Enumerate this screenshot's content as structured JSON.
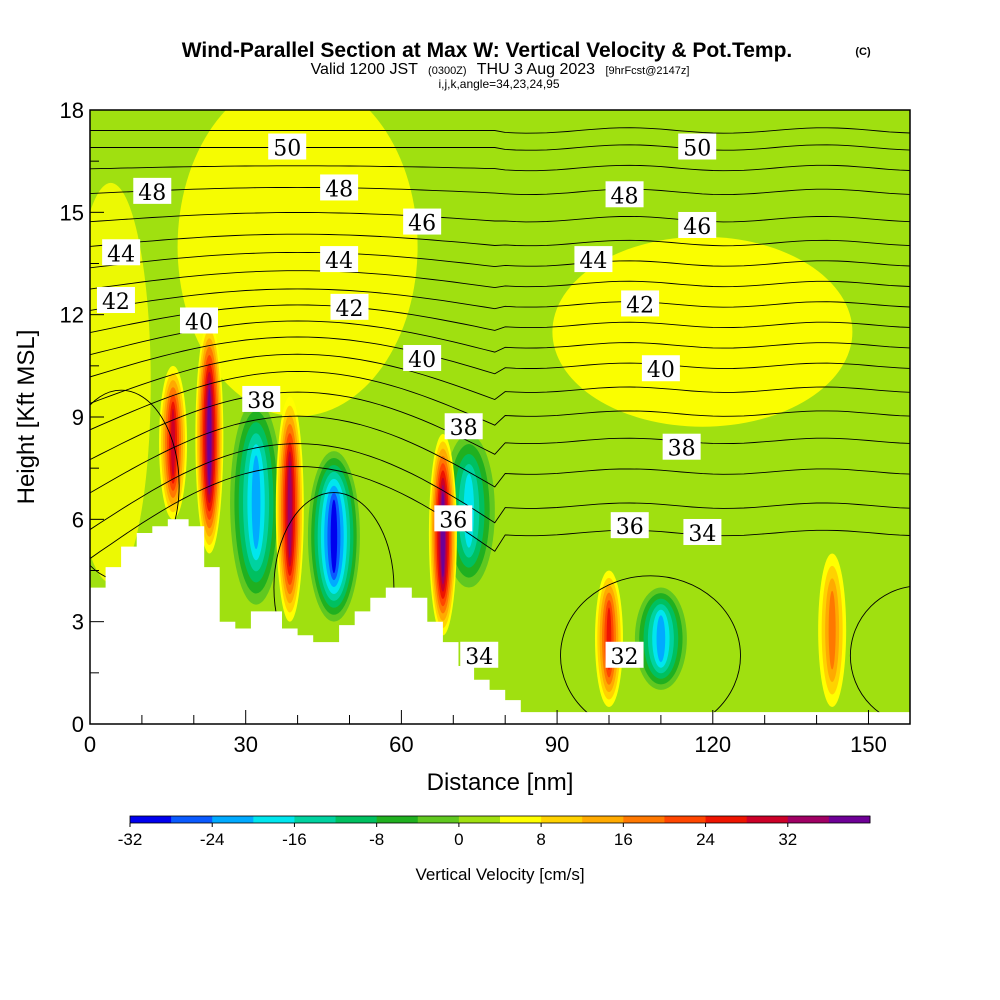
{
  "chart_data": {
    "type": "heatmap",
    "title": "Wind-Parallel Section at Max W: Vertical Velocity & Pot.Temp.",
    "title_mark": "(C)",
    "subtitle": {
      "valid": "Valid 1200 JST",
      "zulu": "(0300Z)",
      "date": "THU 3 Aug 2023",
      "forecast": "[9hrFcst@2147z]"
    },
    "indices": "i,j,k,angle=34,23,24,95",
    "xlabel": "Distance [nm]",
    "ylabel": "Height [Kft MSL]",
    "xlim": [
      0,
      158
    ],
    "ylim": [
      0,
      18
    ],
    "x_ticks": [
      "0",
      "30",
      "60",
      "90",
      "120",
      "150"
    ],
    "y_ticks": [
      "0",
      "3",
      "6",
      "9",
      "12",
      "15",
      "18"
    ],
    "colorbar": {
      "label": "Vertical Velocity [cm/s]",
      "levels": [
        -32,
        -28,
        -24,
        -20,
        -16,
        -12,
        -8,
        -4,
        0,
        4,
        8,
        12,
        16,
        20,
        24,
        28,
        32,
        36
      ],
      "tick_labels": [
        "-32",
        "-24",
        "-16",
        "-8",
        "0",
        "8",
        "16",
        "24",
        "32"
      ],
      "colors": [
        "#0000ee",
        "#0a5aff",
        "#00aaff",
        "#00e6ee",
        "#00d2a0",
        "#00c060",
        "#20b020",
        "#60c820",
        "#a0e010",
        "#ffff00",
        "#ffd200",
        "#ffaa00",
        "#ff7800",
        "#ff4600",
        "#ee1400",
        "#cc0028",
        "#a00064",
        "#6e0096"
      ]
    },
    "terrain_kft": [
      [
        0,
        4.0
      ],
      [
        3,
        4.0
      ],
      [
        3,
        4.6
      ],
      [
        6,
        4.6
      ],
      [
        6,
        5.2
      ],
      [
        9,
        5.2
      ],
      [
        9,
        5.6
      ],
      [
        12,
        5.6
      ],
      [
        12,
        5.8
      ],
      [
        15,
        5.8
      ],
      [
        15,
        6.0
      ],
      [
        19,
        6.0
      ],
      [
        19,
        5.8
      ],
      [
        22,
        5.8
      ],
      [
        22,
        4.6
      ],
      [
        25,
        4.6
      ],
      [
        25,
        3.0
      ],
      [
        28,
        3.0
      ],
      [
        28,
        2.8
      ],
      [
        31,
        2.8
      ],
      [
        31,
        3.3
      ],
      [
        37,
        3.3
      ],
      [
        37,
        2.8
      ],
      [
        40,
        2.8
      ],
      [
        40,
        2.6
      ],
      [
        43,
        2.6
      ],
      [
        43,
        2.4
      ],
      [
        48,
        2.4
      ],
      [
        48,
        2.9
      ],
      [
        51,
        2.9
      ],
      [
        51,
        3.3
      ],
      [
        54,
        3.3
      ],
      [
        54,
        3.7
      ],
      [
        57,
        3.7
      ],
      [
        57,
        4.0
      ],
      [
        62,
        4.0
      ],
      [
        62,
        3.7
      ],
      [
        65,
        3.7
      ],
      [
        65,
        3.0
      ],
      [
        68,
        3.0
      ],
      [
        68,
        2.4
      ],
      [
        71,
        2.4
      ],
      [
        71,
        1.7
      ],
      [
        74,
        1.7
      ],
      [
        74,
        1.3
      ],
      [
        77,
        1.3
      ],
      [
        77,
        1.0
      ],
      [
        80,
        1.0
      ],
      [
        80,
        0.7
      ],
      [
        83,
        0.7
      ],
      [
        83,
        0.35
      ],
      [
        158,
        0.35
      ]
    ],
    "updraft_cores": [
      {
        "x": 16,
        "z_bottom": 6.0,
        "z_top": 10.5,
        "w": 28
      },
      {
        "x": 23,
        "z_bottom": 5.0,
        "z_top": 11.8,
        "w": 36
      },
      {
        "x": 38.5,
        "z_bottom": 3.0,
        "z_top": 9.6,
        "w": 30
      },
      {
        "x": 68,
        "z_bottom": 2.6,
        "z_top": 8.5,
        "w": 36
      },
      {
        "x": 100,
        "z_bottom": 0.5,
        "z_top": 4.5,
        "w": 24
      },
      {
        "x": 143,
        "z_bottom": 0.5,
        "z_top": 5.0,
        "w": 14
      }
    ],
    "downdraft_cores": [
      {
        "x": 32,
        "z_bottom": 3.5,
        "z_top": 9.5,
        "w": -24
      },
      {
        "x": 47,
        "z_bottom": 3.0,
        "z_top": 8.0,
        "w": -32
      },
      {
        "x": 73,
        "z_bottom": 4.0,
        "z_top": 8.5,
        "w": -20
      },
      {
        "x": 110,
        "z_bottom": 1.0,
        "z_top": 4.0,
        "w": -22
      }
    ],
    "theta_contours": [
      {
        "label": "32",
        "at": [
          103,
          2.0
        ]
      },
      {
        "label": "34",
        "at": [
          75,
          2.0
        ]
      },
      {
        "label": "34",
        "at": [
          118,
          5.6
        ]
      },
      {
        "label": "36",
        "at": [
          70,
          6.0
        ]
      },
      {
        "label": "36",
        "at": [
          104,
          5.8
        ]
      },
      {
        "label": "38",
        "at": [
          33,
          9.5
        ]
      },
      {
        "label": "38",
        "at": [
          72,
          8.7
        ]
      },
      {
        "label": "38",
        "at": [
          114,
          8.1
        ]
      },
      {
        "label": "40",
        "at": [
          21,
          11.8
        ]
      },
      {
        "label": "40",
        "at": [
          64,
          10.7
        ]
      },
      {
        "label": "40",
        "at": [
          110,
          10.4
        ]
      },
      {
        "label": "42",
        "at": [
          5,
          12.4
        ]
      },
      {
        "label": "42",
        "at": [
          50,
          12.2
        ]
      },
      {
        "label": "42",
        "at": [
          106,
          12.3
        ]
      },
      {
        "label": "44",
        "at": [
          6,
          13.8
        ]
      },
      {
        "label": "44",
        "at": [
          48,
          13.6
        ]
      },
      {
        "label": "44",
        "at": [
          97,
          13.6
        ]
      },
      {
        "label": "46",
        "at": [
          64,
          14.7
        ]
      },
      {
        "label": "46",
        "at": [
          117,
          14.6
        ]
      },
      {
        "label": "48",
        "at": [
          12,
          15.6
        ]
      },
      {
        "label": "48",
        "at": [
          48,
          15.7
        ]
      },
      {
        "label": "48",
        "at": [
          103,
          15.5
        ]
      },
      {
        "label": "50",
        "at": [
          38,
          16.9
        ]
      },
      {
        "label": "50",
        "at": [
          117,
          16.9
        ]
      }
    ]
  }
}
